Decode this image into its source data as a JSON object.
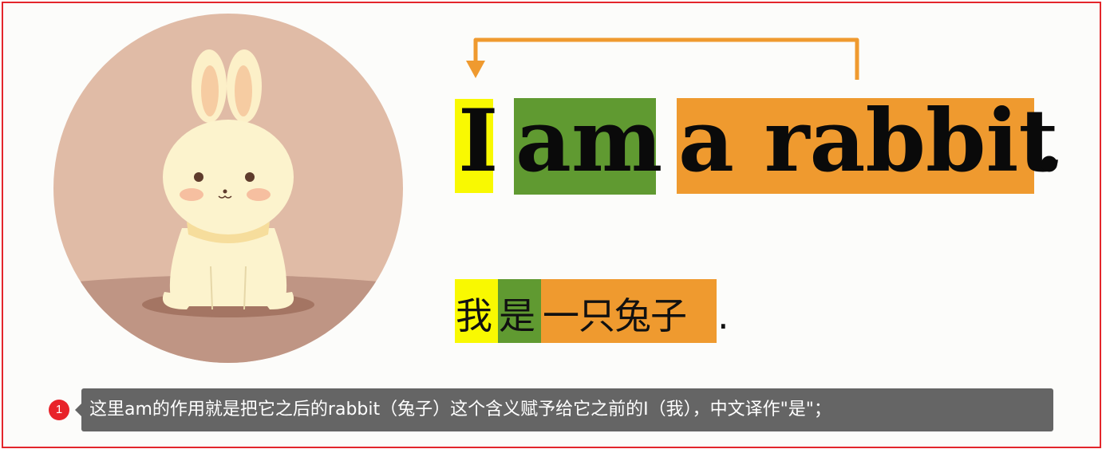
{
  "english": {
    "word_i": "I",
    "word_am": "am",
    "word_rabbit": "a rabbit",
    "period": "."
  },
  "chinese": {
    "word_wo": "我",
    "word_shi": "是",
    "word_rabbit": "一只兔子",
    "period": "."
  },
  "caption": {
    "badge": "1",
    "text": "这里am的作用就是把它之后的rabbit（兔子）这个含义赋予给它之前的I（我），中文译作\"是\"；"
  },
  "colors": {
    "subject": "#f9f901",
    "verb": "#609a31",
    "object": "#ef9a2f",
    "arrow": "#ef9a2f",
    "border": "#e3262b"
  },
  "icons": {
    "illustration": "rabbit-illustration",
    "arrow": "arrow-back-icon"
  }
}
